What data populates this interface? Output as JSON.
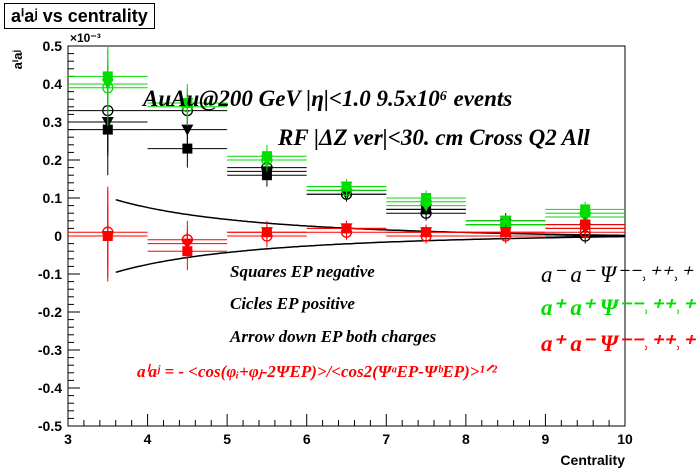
{
  "header": {
    "title": "aⁱaʲ vs centrality"
  },
  "annotations": {
    "line1": "AuAu@200 GeV |η|<1.0 9.5x10⁶ events",
    "line2": "RF |ΔZ ver|<30. cm Cross Q2 All",
    "squares": "Squares EP negative",
    "circles": "Cicles EP positive",
    "arrows": "Arrow down EP both charges",
    "formula": "aⁱaʲ = - <cos(φᵢ+φⱼ-2ΨEP)>/<cos2(ΨᵃEP-ΨᵇEP)>¹ᐟ²"
  },
  "legend": {
    "mm_label": "a⁻ a⁻ Ψ⁻⁻˒⁺⁺˒⁺⁻",
    "pp_label": "a⁺ a⁺ Ψ⁻⁻˒⁺⁺˒⁺⁻",
    "pm_label": "a⁺ a⁻ Ψ⁻⁻˒⁺⁺˒⁺⁻"
  },
  "chart_data": {
    "type": "scatter",
    "title": "aⁱaʲ vs centrality",
    "xlabel": "Centrality",
    "ylabel": "aⁱaʲ",
    "yscale_label": "×10⁻³",
    "xlim": [
      3,
      10
    ],
    "ylim": [
      -0.5,
      0.5
    ],
    "x_ticks": [
      "3",
      "4",
      "5",
      "6",
      "7",
      "8",
      "9",
      "10"
    ],
    "y_ticks": [
      "-0.5",
      "-0.4",
      "-0.3",
      "-0.2",
      "-0.1",
      "0",
      "0.1",
      "0.2",
      "0.3",
      "0.4",
      "0.5"
    ],
    "grid": false,
    "colors": {
      "mm": "#000000",
      "pp": "#00dd00",
      "pm": "#ff0000"
    },
    "x": [
      3.5,
      4.5,
      5.5,
      6.5,
      7.5,
      8.5,
      9.5
    ],
    "series": [
      {
        "key": "mm_sq",
        "color": "#000000",
        "marker": "square",
        "values": [
          0.28,
          0.23,
          0.16,
          0.12,
          0.07,
          0.04,
          0.03
        ],
        "errors": [
          0.12,
          0.05,
          0.03,
          0.02,
          0.02,
          0.02,
          0.02
        ]
      },
      {
        "key": "mm_circ",
        "color": "#000000",
        "marker": "circle-open",
        "values": [
          0.33,
          0.33,
          0.18,
          0.11,
          0.06,
          0.03,
          0.0
        ],
        "errors": [
          0.12,
          0.05,
          0.03,
          0.02,
          0.02,
          0.02,
          0.02
        ]
      },
      {
        "key": "mm_tri",
        "color": "#000000",
        "marker": "triangle-down",
        "values": [
          0.3,
          0.28,
          0.17,
          0.11,
          0.07,
          0.03,
          0.02
        ],
        "errors": [
          0.08,
          0.04,
          0.02,
          0.015,
          0.015,
          0.015,
          0.015
        ]
      },
      {
        "key": "pp_sq",
        "color": "#00dd00",
        "marker": "square",
        "values": [
          0.42,
          0.35,
          0.21,
          0.13,
          0.1,
          0.03,
          0.07
        ],
        "errors": [
          0.1,
          0.05,
          0.03,
          0.02,
          0.02,
          0.02,
          0.02
        ]
      },
      {
        "key": "pp_circ",
        "color": "#00dd00",
        "marker": "circle-open",
        "values": [
          0.39,
          0.34,
          0.2,
          0.12,
          0.09,
          0.03,
          0.06
        ],
        "errors": [
          0.1,
          0.05,
          0.03,
          0.02,
          0.02,
          0.02,
          0.02
        ]
      },
      {
        "key": "pp_tri",
        "color": "#00dd00",
        "marker": "triangle-down",
        "values": [
          0.4,
          0.35,
          0.2,
          0.13,
          0.08,
          0.04,
          0.05
        ],
        "errors": [
          0.06,
          0.03,
          0.02,
          0.015,
          0.015,
          0.015,
          0.015
        ]
      },
      {
        "key": "pm_sq",
        "color": "#ff0000",
        "marker": "square",
        "values": [
          0.0,
          -0.04,
          0.01,
          0.02,
          0.01,
          0.01,
          0.03
        ],
        "errors": [
          0.12,
          0.05,
          0.03,
          0.02,
          0.02,
          0.02,
          0.02
        ]
      },
      {
        "key": "pm_circ",
        "color": "#ff0000",
        "marker": "circle-open",
        "values": [
          0.01,
          -0.01,
          0.0,
          0.01,
          0.0,
          0.0,
          0.01
        ],
        "errors": [
          0.12,
          0.05,
          0.03,
          0.02,
          0.02,
          0.02,
          0.02
        ]
      },
      {
        "key": "pm_tri",
        "color": "#ff0000",
        "marker": "triangle-down",
        "values": [
          0.0,
          -0.02,
          0.01,
          0.02,
          0.01,
          0.01,
          0.02
        ],
        "errors": [
          0.08,
          0.04,
          0.02,
          0.015,
          0.015,
          0.015,
          0.015
        ]
      }
    ],
    "curves": [
      {
        "key": "upper-curve",
        "color": "#000000",
        "formula": "1.4/x^2 - 0.0125"
      },
      {
        "key": "lower-curve",
        "color": "#000000",
        "formula": "-(1.4/x^2 - 0.0125)"
      }
    ]
  }
}
